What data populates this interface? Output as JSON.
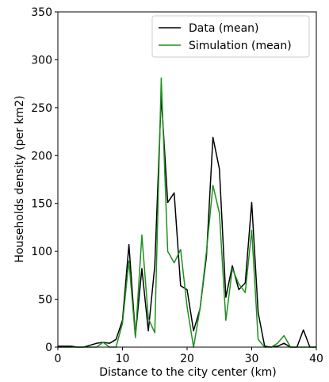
{
  "chart_data": {
    "type": "line",
    "xlabel": "Distance to the city center (km)",
    "ylabel": "Households density (per km2)",
    "xlim": [
      0,
      40
    ],
    "ylim": [
      0,
      350
    ],
    "xticks": [
      0,
      10,
      20,
      30,
      40
    ],
    "yticks": [
      0,
      50,
      100,
      150,
      200,
      250,
      300,
      350
    ],
    "grid": false,
    "legend_position": "top-right",
    "series": [
      {
        "name": "Data (mean)",
        "color": "#000000",
        "x": [
          0,
          1,
          2,
          3,
          4,
          5,
          6,
          7,
          8,
          9,
          10,
          11,
          12,
          13,
          14,
          15,
          16,
          17,
          18,
          19,
          20,
          21,
          22,
          23,
          24,
          25,
          26,
          27,
          28,
          29,
          30,
          31,
          32,
          33,
          34,
          35,
          36,
          37,
          38,
          39,
          40
        ],
        "y": [
          1,
          1,
          1,
          0,
          0,
          2,
          4,
          5,
          4,
          8,
          28,
          107,
          12,
          82,
          17,
          85,
          262,
          151,
          161,
          64,
          60,
          17,
          40,
          95,
          219,
          186,
          52,
          85,
          60,
          67,
          151,
          36,
          1,
          0,
          1,
          4,
          0,
          0,
          18,
          0,
          0
        ]
      },
      {
        "name": "Simulation (mean)",
        "color": "#1f8f1f",
        "x": [
          0,
          1,
          2,
          3,
          4,
          5,
          6,
          7,
          8,
          9,
          10,
          11,
          12,
          13,
          14,
          15,
          16,
          17,
          18,
          19,
          20,
          21,
          22,
          23,
          24,
          25,
          26,
          27,
          28,
          29,
          30,
          31,
          32,
          33,
          34,
          35,
          36,
          37,
          38,
          39,
          40
        ],
        "y": [
          0,
          0,
          0,
          0,
          0,
          0,
          0,
          5,
          0,
          0,
          25,
          90,
          10,
          117,
          30,
          15,
          281,
          100,
          88,
          102,
          42,
          0,
          40,
          100,
          169,
          140,
          28,
          82,
          66,
          57,
          122,
          8,
          0,
          0,
          4,
          12,
          0,
          0,
          0,
          0,
          0
        ]
      }
    ]
  }
}
